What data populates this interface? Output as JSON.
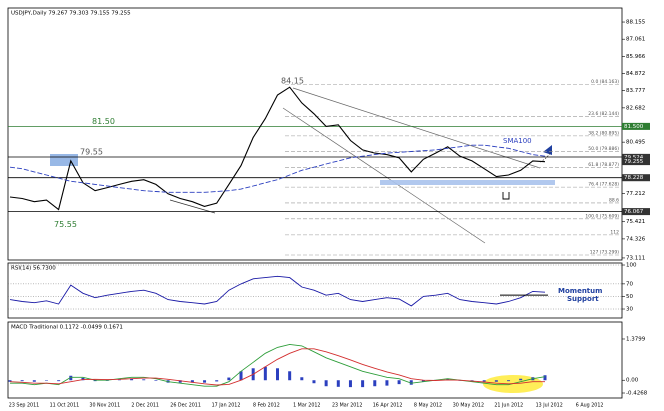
{
  "chart_data": [
    {
      "type": "line",
      "title": "USDJPY,Daily 79.267 79.303 79.155 79.255",
      "ylim": [
        72.98,
        89.05
      ],
      "yticks": [
        88.155,
        87.061,
        85.966,
        84.872,
        83.777,
        82.682,
        80.495,
        79.401,
        77.212,
        75.421,
        74.326,
        73.111
      ],
      "series": [
        {
          "color": "#000000",
          "values": [
            77.0,
            76.9,
            76.7,
            76.8,
            76.2,
            79.3,
            77.9,
            77.4,
            77.6,
            77.8,
            78.0,
            78.1,
            77.8,
            77.2,
            76.9,
            76.7,
            76.4,
            76.6,
            77.8,
            79.0,
            80.8,
            82.0,
            83.5,
            84.0,
            83.0,
            82.3,
            81.5,
            81.6,
            80.6,
            80.0,
            79.8,
            79.7,
            79.5,
            78.6,
            79.4,
            79.8,
            80.2,
            79.6,
            79.3,
            78.8,
            78.3,
            78.4,
            78.7,
            79.3,
            79.25
          ]
        },
        {
          "name": "SMA100",
          "color": "#2b3fbf",
          "dashed": true,
          "values": [
            78.9,
            78.8,
            78.6,
            78.4,
            78.2,
            78.0,
            77.9,
            77.8,
            77.7,
            77.6,
            77.5,
            77.4,
            77.35,
            77.3,
            77.3,
            77.3,
            77.3,
            77.35,
            77.4,
            77.5,
            77.7,
            77.9,
            78.1,
            78.4,
            78.7,
            78.9,
            79.1,
            79.3,
            79.5,
            79.6,
            79.7,
            79.8,
            79.85,
            79.9,
            79.95,
            80.0,
            80.1,
            80.2,
            80.3,
            80.3,
            80.2,
            80.1,
            79.9,
            79.7,
            79.6
          ]
        }
      ],
      "levels": [
        {
          "value": 81.5,
          "label": "81.50",
          "color": "#2e7d32"
        },
        {
          "value": 79.55,
          "label": "79.55",
          "color": "#000000"
        },
        {
          "value": 78.228,
          "color": "#000000"
        },
        {
          "value": 76.067,
          "color": "#000000"
        }
      ],
      "extremes": [
        {
          "value": 84.15,
          "label": "84.15"
        },
        {
          "value": 75.55,
          "label": "75.55"
        }
      ],
      "fib": [
        {
          "value": 84.163,
          "label": "0.0 (84.163)"
        },
        {
          "value": 82.144,
          "label": "23.6 (82.144)"
        },
        {
          "value": 80.895,
          "label": "38.2 (80.895)"
        },
        {
          "value": 79.886,
          "label": "50.0 (79.886)"
        },
        {
          "value": 78.877,
          "label": "61.8 (78.877)"
        },
        {
          "value": 77.628,
          "label": "76.4 (77.628)"
        },
        {
          "value": 76.617,
          "label": "88.6"
        },
        {
          "value": 75.609,
          "label": "100.0 (75.609)"
        },
        {
          "value": 74.583,
          "label": "112"
        },
        {
          "value": 73.299,
          "label": "127 (73.299)"
        }
      ],
      "price_tags": [
        {
          "value": 81.5,
          "label": "81.500",
          "color": "#2e7d32"
        },
        {
          "value": 79.524,
          "label": "79.524",
          "color": "#333333"
        },
        {
          "value": 79.255,
          "label": "79.255",
          "color": "#333333"
        },
        {
          "value": 78.228,
          "label": "78.228",
          "color": "#333333"
        },
        {
          "value": 76.067,
          "label": "76.067",
          "color": "#333333"
        }
      ]
    },
    {
      "type": "line",
      "title": "RSI(14) 56.7300",
      "ylim": [
        15.7,
        103.2
      ],
      "yticks": [
        100,
        70,
        50,
        30
      ],
      "series": [
        {
          "color": "#1a1aa6",
          "values": [
            45,
            42,
            40,
            43,
            38,
            68,
            55,
            48,
            52,
            55,
            58,
            60,
            55,
            45,
            42,
            40,
            38,
            42,
            60,
            70,
            78,
            80,
            82,
            80,
            65,
            60,
            52,
            55,
            45,
            42,
            45,
            48,
            46,
            35,
            50,
            52,
            55,
            45,
            42,
            40,
            38,
            42,
            48,
            58,
            56.73
          ]
        }
      ],
      "support": {
        "value": 52,
        "label": [
          "Momentum",
          "Support"
        ]
      }
    },
    {
      "type": "bar",
      "title": "MACD Traditional 0.1172 -0.0499 0.1671",
      "ylim": [
        -0.594,
        1.948
      ],
      "yticks": [
        1.3799,
        {
          "value": 0,
          "label": "0.00"
        },
        -0.4268
      ],
      "bars": {
        "color": "#2b3fbf",
        "values": [
          -0.05,
          -0.03,
          -0.05,
          0,
          -0.03,
          0.15,
          0.08,
          -0.03,
          -0.02,
          0.02,
          0.05,
          0.03,
          -0.02,
          -0.08,
          -0.08,
          -0.08,
          -0.08,
          -0.04,
          0.09,
          0.3,
          0.4,
          0.45,
          0.4,
          0.3,
          0.1,
          -0.1,
          -0.2,
          -0.22,
          -0.23,
          -0.23,
          -0.2,
          -0.18,
          -0.13,
          -0.15,
          -0.05,
          0.01,
          0.04,
          0,
          -0.02,
          -0.04,
          -0.05,
          -0.03,
          0.05,
          0.1,
          0.1671
        ]
      },
      "series": [
        {
          "color": "#2e9e3a",
          "values": [
            -0.1,
            -0.1,
            -0.15,
            -0.1,
            -0.15,
            0.1,
            0.1,
            0,
            0,
            0.05,
            0.1,
            0.1,
            0.05,
            -0.05,
            -0.1,
            -0.15,
            -0.2,
            -0.2,
            -0.05,
            0.3,
            0.6,
            0.9,
            1.1,
            1.2,
            1.15,
            0.95,
            0.75,
            0.6,
            0.45,
            0.3,
            0.2,
            0.1,
            0.05,
            -0.1,
            -0.05,
            0,
            0.05,
            0,
            -0.05,
            -0.1,
            -0.15,
            -0.15,
            -0.05,
            0.05,
            0.1172
          ]
        },
        {
          "color": "#d32f2f",
          "values": [
            -0.05,
            -0.07,
            -0.1,
            -0.1,
            -0.12,
            -0.05,
            0.02,
            0.03,
            0.02,
            0.03,
            0.05,
            0.07,
            0.07,
            0.03,
            -0.02,
            -0.07,
            -0.12,
            -0.16,
            -0.14,
            0,
            0.2,
            0.45,
            0.7,
            0.9,
            1.05,
            1.05,
            0.95,
            0.82,
            0.68,
            0.53,
            0.4,
            0.28,
            0.18,
            0.05,
            0,
            -0.01,
            0.01,
            0,
            -0.03,
            -0.06,
            -0.1,
            -0.12,
            -0.1,
            -0.05,
            -0.0499
          ]
        }
      ],
      "date_labels": [
        "23 Sep 2011",
        "11 Oct 2011",
        "30 Nov 2011",
        "2 Dec 2011",
        "26 Dec 2011",
        "17 Jan 2012",
        "8 Feb 2012",
        "1 Mar 2012",
        "23 Mar 2012",
        "16 Apr 2012",
        "8 May 2012",
        "30 May 2012",
        "21 Jun 2012",
        "13 Jul 2012",
        "6 Aug 2012"
      ]
    }
  ]
}
